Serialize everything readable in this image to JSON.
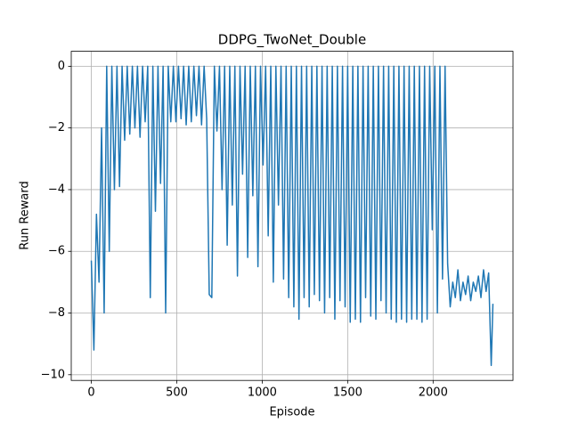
{
  "chart_data": {
    "type": "line",
    "title": "DDPG_TwoNet_Double",
    "xlabel": "Episode",
    "ylabel": "Run Reward",
    "x": [
      0,
      15,
      30,
      45,
      60,
      75,
      90,
      105,
      120,
      135,
      150,
      165,
      180,
      195,
      210,
      225,
      240,
      255,
      270,
      285,
      300,
      315,
      330,
      345,
      360,
      375,
      390,
      405,
      420,
      435,
      450,
      465,
      480,
      495,
      510,
      525,
      540,
      555,
      570,
      585,
      600,
      615,
      630,
      645,
      660,
      675,
      690,
      705,
      720,
      735,
      750,
      765,
      780,
      795,
      810,
      825,
      840,
      855,
      870,
      885,
      900,
      915,
      930,
      945,
      960,
      975,
      990,
      1005,
      1020,
      1035,
      1050,
      1065,
      1080,
      1095,
      1110,
      1125,
      1140,
      1155,
      1170,
      1185,
      1200,
      1215,
      1230,
      1245,
      1260,
      1275,
      1290,
      1305,
      1320,
      1335,
      1350,
      1365,
      1380,
      1395,
      1410,
      1425,
      1440,
      1455,
      1470,
      1485,
      1500,
      1515,
      1530,
      1545,
      1560,
      1575,
      1590,
      1605,
      1620,
      1635,
      1650,
      1665,
      1680,
      1695,
      1710,
      1725,
      1740,
      1755,
      1770,
      1785,
      1800,
      1815,
      1830,
      1845,
      1860,
      1875,
      1890,
      1905,
      1920,
      1935,
      1950,
      1965,
      1980,
      1995,
      2010,
      2025,
      2040,
      2055,
      2070,
      2085,
      2100,
      2115,
      2130,
      2145,
      2160,
      2175,
      2190,
      2205,
      2220,
      2235,
      2250,
      2265,
      2280,
      2295,
      2310,
      2325,
      2340,
      2350
    ],
    "series": [
      {
        "color": "#1f77b4",
        "values": [
          -6.3,
          -9.2,
          -4.8,
          -7.0,
          -2.0,
          -8.0,
          0,
          -6.0,
          0,
          -4.0,
          0,
          -3.9,
          0,
          -2.4,
          0,
          -2.2,
          0,
          -2.0,
          0,
          -2.3,
          0,
          -1.8,
          0,
          -7.5,
          0,
          -4.7,
          0,
          -3.8,
          0,
          -8.0,
          0,
          -1.8,
          0,
          -1.8,
          0,
          -1.7,
          0,
          -1.9,
          0,
          -1.8,
          0,
          -1.6,
          0,
          -1.9,
          0,
          -1.7,
          -7.4,
          -7.5,
          0,
          -2.1,
          0,
          -4.0,
          0,
          -5.8,
          0,
          -4.5,
          0,
          -6.8,
          0,
          -3.5,
          0,
          -6.2,
          0,
          -4.2,
          0,
          -6.5,
          0,
          -3.2,
          0,
          -5.5,
          0,
          -7.0,
          0,
          -4.5,
          0,
          -6.9,
          0,
          -7.5,
          0,
          -7.8,
          0,
          -8.2,
          0,
          -7.5,
          0,
          -7.8,
          0,
          -7.4,
          0,
          -7.6,
          0,
          -8.0,
          0,
          -7.5,
          0,
          -8.2,
          0,
          -7.6,
          0,
          -7.8,
          0,
          -8.3,
          0,
          -8.2,
          0,
          -8.3,
          0,
          -7.5,
          0,
          -8.1,
          0,
          -8.2,
          0,
          -7.6,
          0,
          -8.0,
          0,
          -8.2,
          0,
          -8.3,
          0,
          -8.2,
          0,
          -8.3,
          0,
          -8.2,
          0,
          -8.2,
          0,
          -8.3,
          0,
          -8.2,
          0,
          -5.3,
          0,
          -8.0,
          0,
          -6.9,
          0,
          -6.4,
          -7.8,
          -7.0,
          -7.5,
          -6.6,
          -7.6,
          -7.0,
          -7.4,
          -6.8,
          -7.6,
          -7.0,
          -7.3,
          -6.8,
          -7.5,
          -6.6,
          -7.3,
          -6.7,
          -9.7,
          -7.7
        ]
      }
    ],
    "xlim": [
      -117.5,
      2467.5
    ],
    "ylim": [
      -10.185,
      0.485
    ],
    "xticks": [
      0,
      500,
      1000,
      1500,
      2000
    ],
    "yticks": [
      {
        "value": -10,
        "label": "−10"
      },
      {
        "value": -8,
        "label": "−8"
      },
      {
        "value": -6,
        "label": "−6"
      },
      {
        "value": -4,
        "label": "−4"
      },
      {
        "value": -2,
        "label": "−2"
      },
      0
    ],
    "grid": true
  }
}
